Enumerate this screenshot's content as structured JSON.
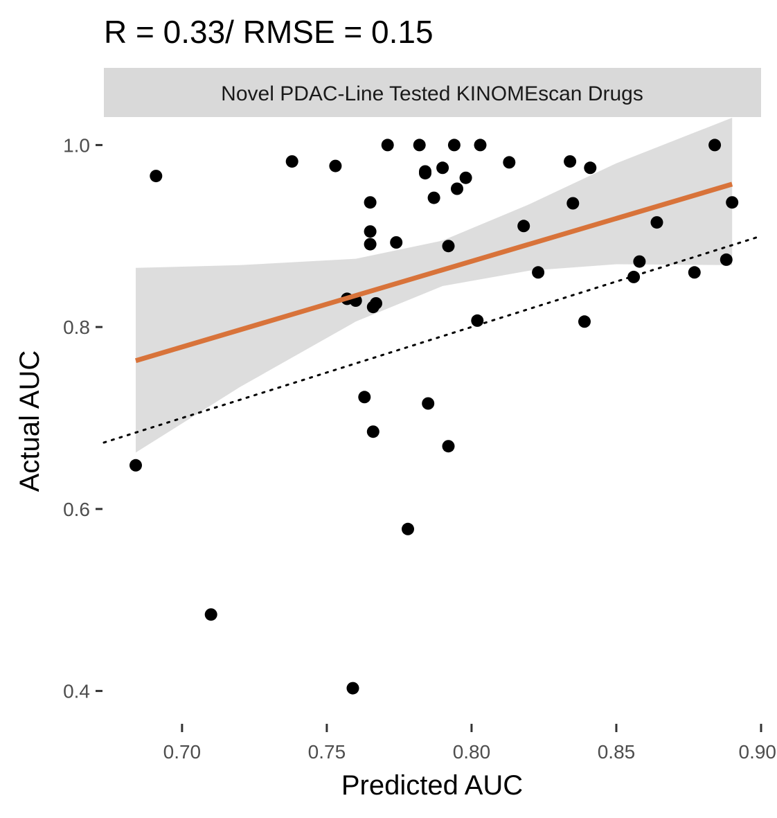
{
  "chart_data": {
    "type": "scatter",
    "title": "R = 0.33/ RMSE = 0.15",
    "facet_label": "Novel PDAC-Line Tested KINOMEscan Drugs",
    "xlabel": "Predicted AUC",
    "ylabel": "Actual AUC",
    "xlim": [
      0.673,
      0.9
    ],
    "ylim": [
      0.37,
      1.03
    ],
    "x_ticks": [
      0.7,
      0.75,
      0.8,
      0.85,
      0.9
    ],
    "x_tick_labels": [
      "0.70",
      "0.75",
      "0.80",
      "0.85",
      "0.90"
    ],
    "y_ticks": [
      0.4,
      0.6,
      0.8,
      1.0
    ],
    "y_tick_labels": [
      "0.4",
      "0.6",
      "0.8",
      "1.0"
    ],
    "grid": false,
    "point_color": "#000000",
    "fit_color": "#D8733A",
    "ribbon_color": "#d9d9d9",
    "strip_color": "#d9d9d9",
    "identity_line": {
      "style": "dotted",
      "color": "#000000"
    },
    "fit_line": {
      "x": [
        0.684,
        0.89
      ],
      "y": [
        0.763,
        0.957
      ]
    },
    "confidence_band": {
      "x": [
        0.684,
        0.72,
        0.76,
        0.79,
        0.82,
        0.85,
        0.89
      ],
      "lower": [
        0.662,
        0.734,
        0.806,
        0.845,
        0.862,
        0.869,
        0.868
      ],
      "upper": [
        0.865,
        0.868,
        0.875,
        0.895,
        0.935,
        0.98,
        1.05
      ]
    },
    "points": [
      {
        "x": 0.684,
        "y": 0.648
      },
      {
        "x": 0.691,
        "y": 0.966
      },
      {
        "x": 0.71,
        "y": 0.484
      },
      {
        "x": 0.738,
        "y": 0.982
      },
      {
        "x": 0.753,
        "y": 0.977
      },
      {
        "x": 0.757,
        "y": 0.831
      },
      {
        "x": 0.759,
        "y": 0.403
      },
      {
        "x": 0.76,
        "y": 0.829
      },
      {
        "x": 0.763,
        "y": 0.723
      },
      {
        "x": 0.765,
        "y": 0.937
      },
      {
        "x": 0.765,
        "y": 0.905
      },
      {
        "x": 0.765,
        "y": 0.891
      },
      {
        "x": 0.766,
        "y": 0.822
      },
      {
        "x": 0.766,
        "y": 0.685
      },
      {
        "x": 0.767,
        "y": 0.826
      },
      {
        "x": 0.771,
        "y": 1.0
      },
      {
        "x": 0.774,
        "y": 0.893
      },
      {
        "x": 0.778,
        "y": 0.578
      },
      {
        "x": 0.782,
        "y": 1.0
      },
      {
        "x": 0.784,
        "y": 0.971
      },
      {
        "x": 0.784,
        "y": 0.969
      },
      {
        "x": 0.785,
        "y": 0.716
      },
      {
        "x": 0.787,
        "y": 0.942
      },
      {
        "x": 0.79,
        "y": 0.975
      },
      {
        "x": 0.792,
        "y": 0.889
      },
      {
        "x": 0.792,
        "y": 0.669
      },
      {
        "x": 0.794,
        "y": 1.0
      },
      {
        "x": 0.795,
        "y": 0.952
      },
      {
        "x": 0.798,
        "y": 0.964
      },
      {
        "x": 0.802,
        "y": 0.807
      },
      {
        "x": 0.803,
        "y": 1.0
      },
      {
        "x": 0.813,
        "y": 0.981
      },
      {
        "x": 0.818,
        "y": 0.911
      },
      {
        "x": 0.823,
        "y": 0.86
      },
      {
        "x": 0.834,
        "y": 0.982
      },
      {
        "x": 0.835,
        "y": 0.936
      },
      {
        "x": 0.839,
        "y": 0.806
      },
      {
        "x": 0.841,
        "y": 0.975
      },
      {
        "x": 0.856,
        "y": 0.855
      },
      {
        "x": 0.858,
        "y": 0.872
      },
      {
        "x": 0.864,
        "y": 0.915
      },
      {
        "x": 0.877,
        "y": 0.86
      },
      {
        "x": 0.884,
        "y": 1.0
      },
      {
        "x": 0.888,
        "y": 0.874
      },
      {
        "x": 0.89,
        "y": 0.937
      }
    ]
  }
}
